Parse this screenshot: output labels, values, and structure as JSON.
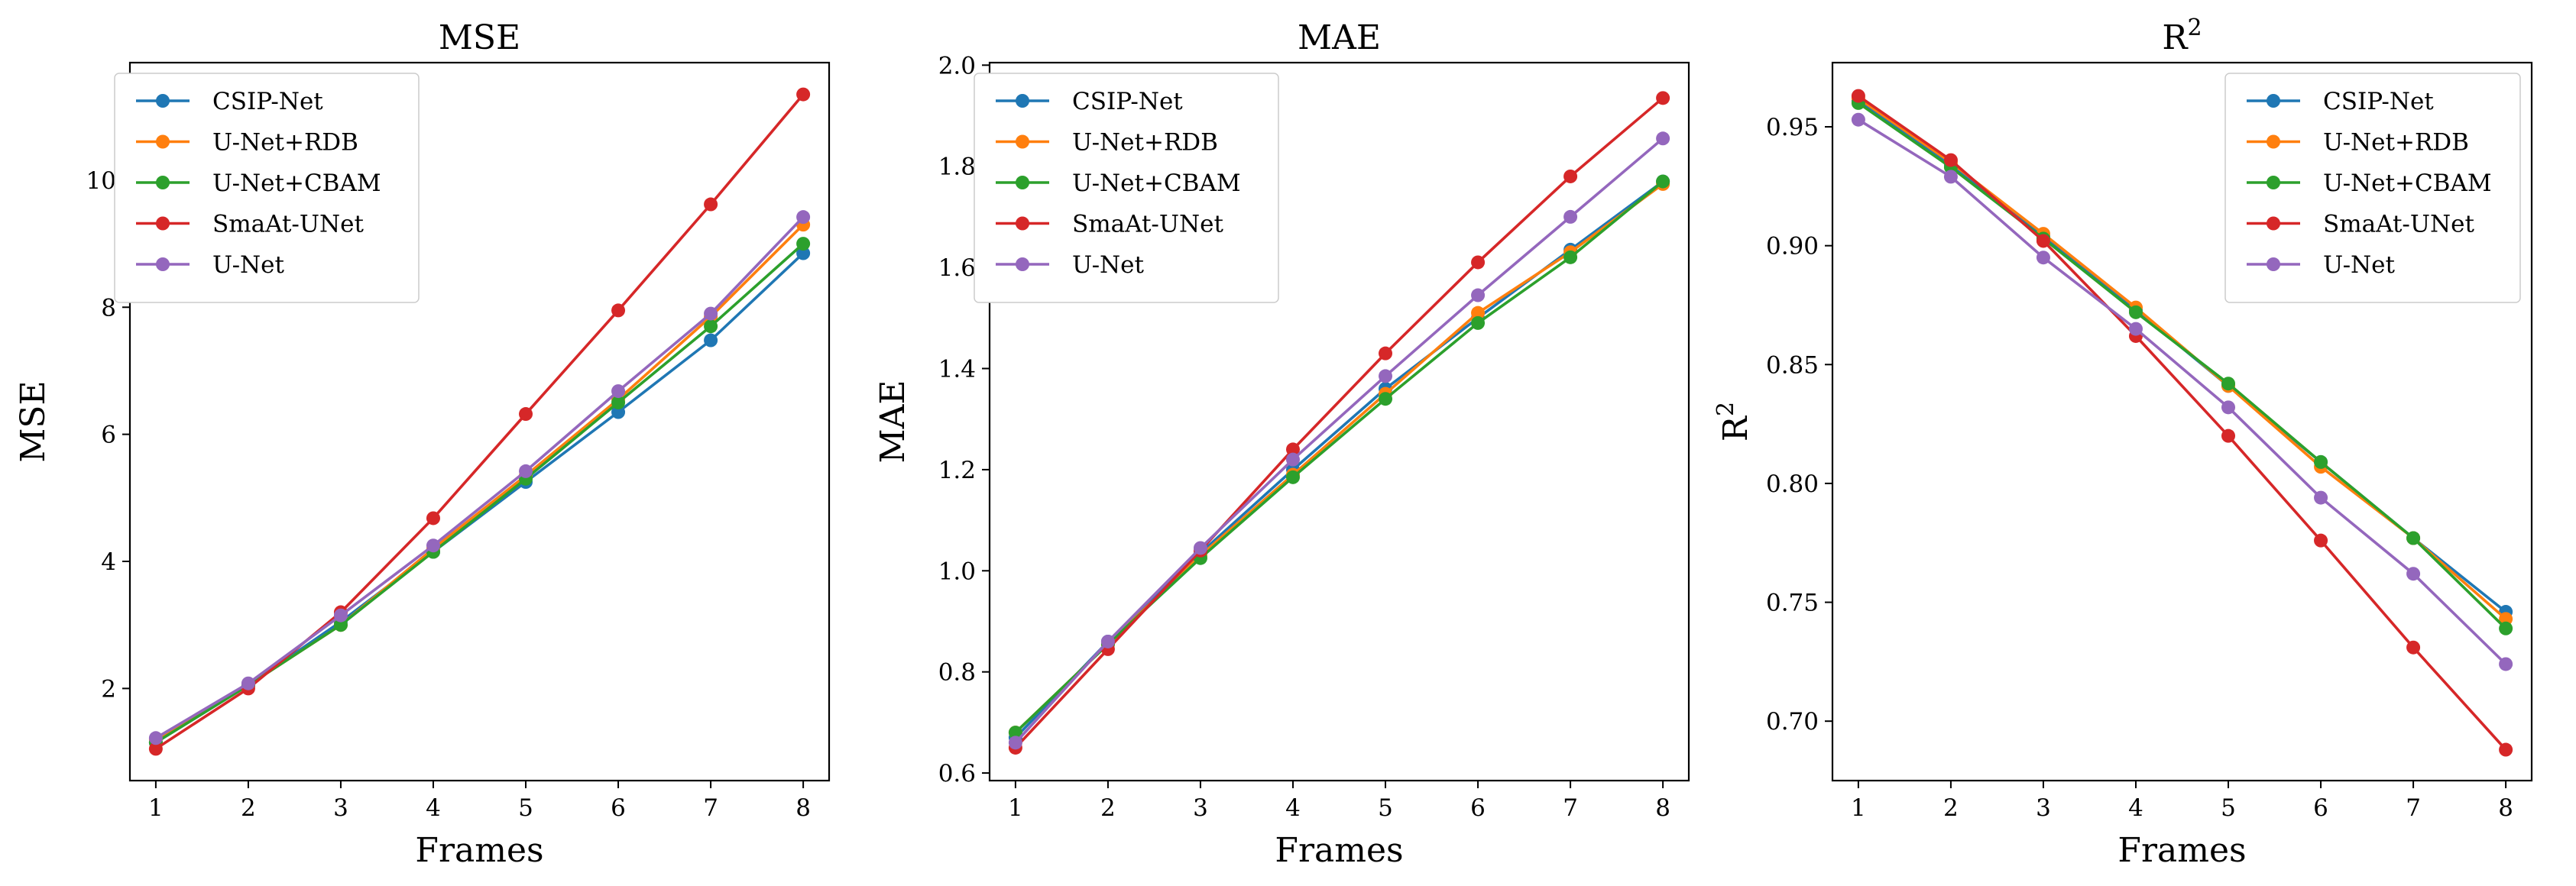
{
  "chart_data": [
    {
      "type": "line",
      "title": "MSE",
      "xlabel": "Frames",
      "ylabel": "MSE",
      "x": [
        1,
        2,
        3,
        4,
        5,
        6,
        7,
        8
      ],
      "xticks": [
        "1",
        "2",
        "3",
        "4",
        "5",
        "6",
        "7",
        "8"
      ],
      "xlim": [
        0.72,
        8.28
      ],
      "yticks": [
        "2",
        "4",
        "6",
        "8",
        "10"
      ],
      "ytick_values": [
        2,
        4,
        6,
        8,
        10
      ],
      "ylim": [
        0.55,
        11.85
      ],
      "legend_position": "upper-left",
      "series": [
        {
          "name": "CSIP-Net",
          "color": "#1f77b4",
          "values": [
            1.15,
            2.05,
            3.05,
            4.15,
            5.25,
            6.35,
            7.48,
            8.85
          ]
        },
        {
          "name": "U-Net+RDB",
          "color": "#ff7f0e",
          "values": [
            1.2,
            2.05,
            3.0,
            4.2,
            5.35,
            6.55,
            7.85,
            9.3
          ]
        },
        {
          "name": "U-Net+CBAM",
          "color": "#2ca02c",
          "values": [
            1.15,
            2.05,
            3.0,
            4.15,
            5.3,
            6.5,
            7.7,
            9.0
          ]
        },
        {
          "name": "SmaAt-UNet",
          "color": "#d62728",
          "values": [
            1.05,
            2.0,
            3.2,
            4.68,
            6.32,
            7.95,
            9.62,
            11.35
          ]
        },
        {
          "name": "U-Net",
          "color": "#9467bd",
          "values": [
            1.22,
            2.08,
            3.15,
            4.25,
            5.42,
            6.68,
            7.9,
            9.42
          ]
        }
      ]
    },
    {
      "type": "line",
      "title": "MAE",
      "xlabel": "Frames",
      "ylabel": "MAE",
      "x": [
        1,
        2,
        3,
        4,
        5,
        6,
        7,
        8
      ],
      "xticks": [
        "1",
        "2",
        "3",
        "4",
        "5",
        "6",
        "7",
        "8"
      ],
      "xlim": [
        0.72,
        8.28
      ],
      "yticks": [
        "0.6",
        "0.8",
        "1.0",
        "1.2",
        "1.4",
        "1.6",
        "1.8",
        "2.0"
      ],
      "ytick_values": [
        0.6,
        0.8,
        1.0,
        1.2,
        1.4,
        1.6,
        1.8,
        2.0
      ],
      "ylim": [
        0.585,
        2.005
      ],
      "legend_position": "upper-left",
      "series": [
        {
          "name": "CSIP-Net",
          "color": "#1f77b4",
          "values": [
            0.67,
            0.86,
            1.035,
            1.2,
            1.36,
            1.5,
            1.635,
            1.77
          ]
        },
        {
          "name": "U-Net+RDB",
          "color": "#ff7f0e",
          "values": [
            0.68,
            0.855,
            1.03,
            1.19,
            1.35,
            1.51,
            1.63,
            1.765
          ]
        },
        {
          "name": "U-Net+CBAM",
          "color": "#2ca02c",
          "values": [
            0.68,
            0.855,
            1.025,
            1.185,
            1.34,
            1.49,
            1.62,
            1.77
          ]
        },
        {
          "name": "SmaAt-UNet",
          "color": "#d62728",
          "values": [
            0.65,
            0.845,
            1.04,
            1.24,
            1.43,
            1.61,
            1.78,
            1.935
          ]
        },
        {
          "name": "U-Net",
          "color": "#9467bd",
          "values": [
            0.66,
            0.86,
            1.045,
            1.22,
            1.385,
            1.545,
            1.7,
            1.855
          ]
        }
      ]
    },
    {
      "type": "line",
      "title": "R",
      "title_superscript": "2",
      "xlabel": "Frames",
      "ylabel": "R",
      "ylabel_superscript": "2",
      "x": [
        1,
        2,
        3,
        4,
        5,
        6,
        7,
        8
      ],
      "xticks": [
        "1",
        "2",
        "3",
        "4",
        "5",
        "6",
        "7",
        "8"
      ],
      "xlim": [
        0.72,
        8.28
      ],
      "yticks": [
        "0.70",
        "0.75",
        "0.80",
        "0.85",
        "0.90",
        "0.95"
      ],
      "ytick_values": [
        0.7,
        0.75,
        0.8,
        0.85,
        0.9,
        0.95
      ],
      "ylim": [
        0.675,
        0.977
      ],
      "legend_position": "upper-right",
      "series": [
        {
          "name": "CSIP-Net",
          "color": "#1f77b4",
          "values": [
            0.961,
            0.934,
            0.904,
            0.873,
            0.841,
            0.809,
            0.777,
            0.746
          ]
        },
        {
          "name": "U-Net+RDB",
          "color": "#ff7f0e",
          "values": [
            0.962,
            0.935,
            0.905,
            0.874,
            0.841,
            0.807,
            0.777,
            0.743
          ]
        },
        {
          "name": "U-Net+CBAM",
          "color": "#2ca02c",
          "values": [
            0.96,
            0.933,
            0.903,
            0.872,
            0.842,
            0.809,
            0.777,
            0.739
          ]
        },
        {
          "name": "SmaAt-UNet",
          "color": "#d62728",
          "values": [
            0.963,
            0.936,
            0.902,
            0.862,
            0.82,
            0.776,
            0.731,
            0.688
          ]
        },
        {
          "name": "U-Net",
          "color": "#9467bd",
          "values": [
            0.953,
            0.929,
            0.895,
            0.865,
            0.832,
            0.794,
            0.762,
            0.724
          ]
        }
      ]
    }
  ]
}
